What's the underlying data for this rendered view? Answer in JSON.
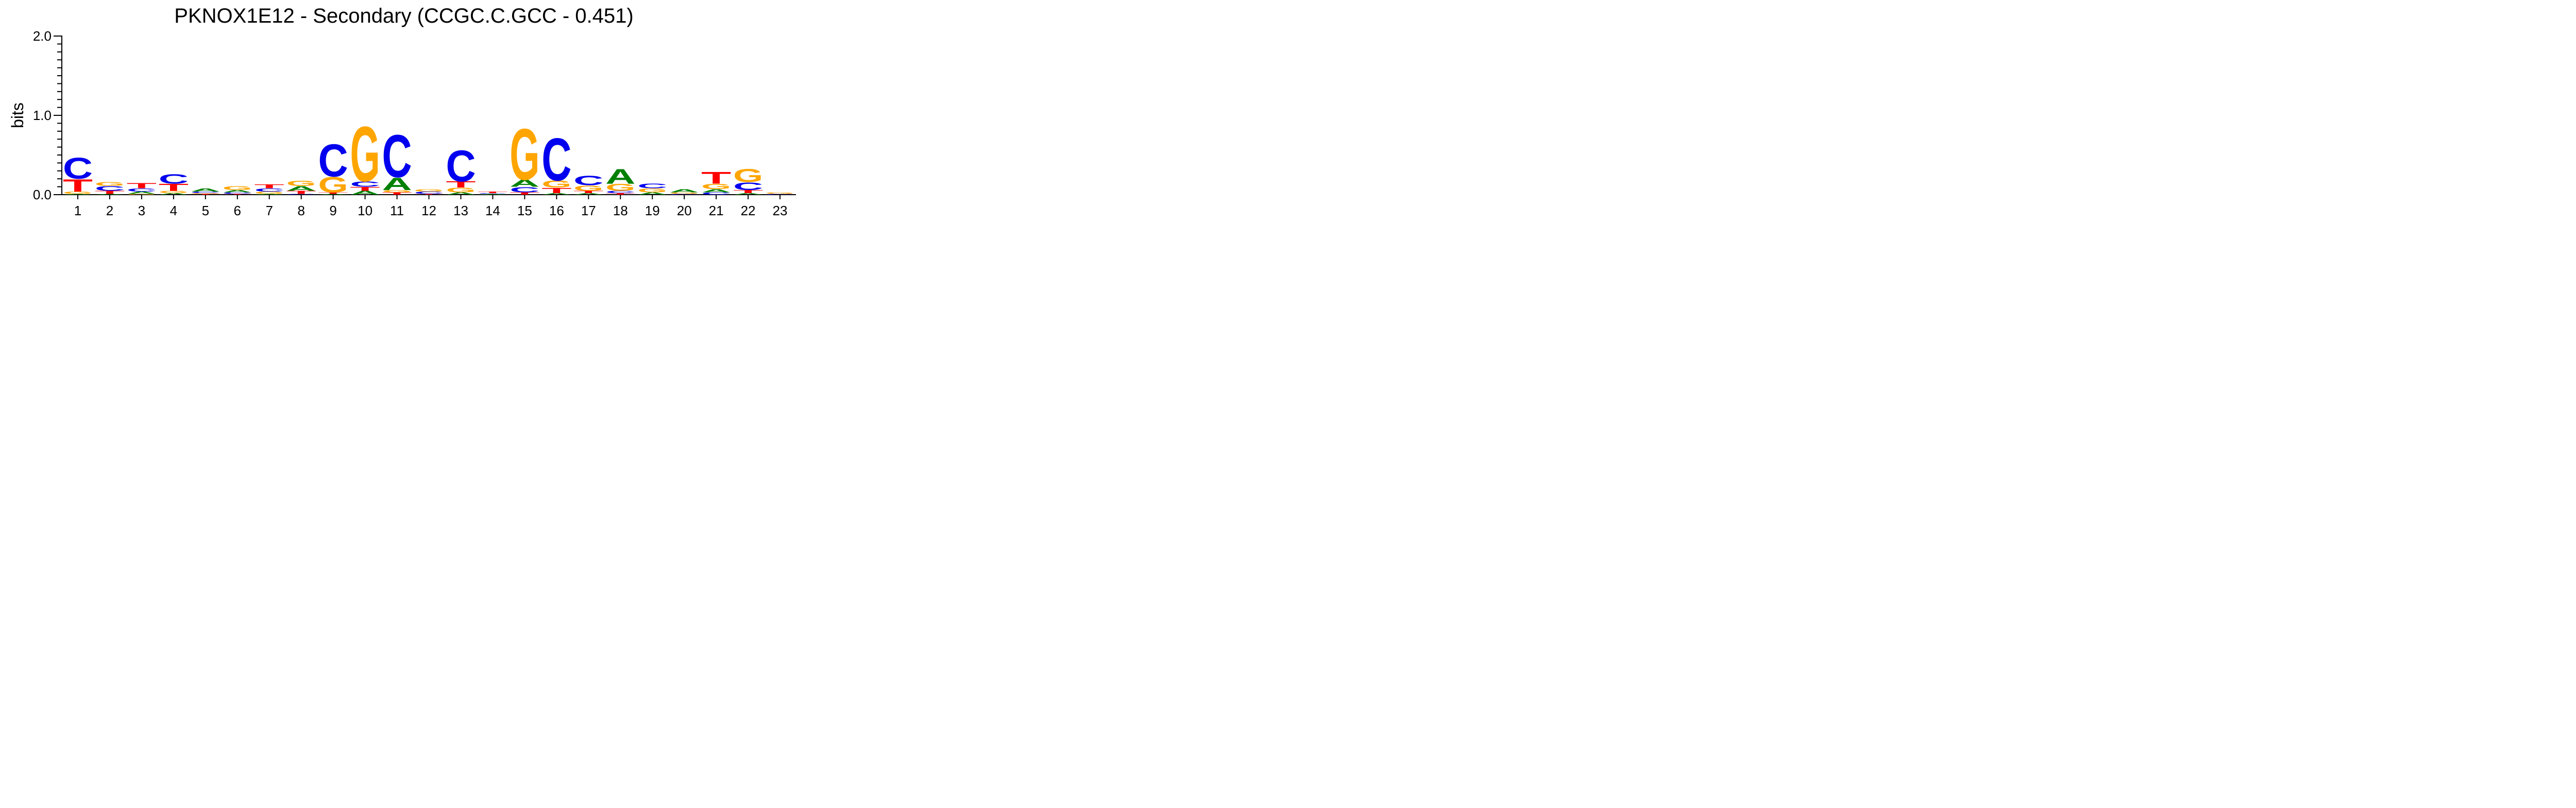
{
  "chart_data": {
    "type": "sequence-logo",
    "title": "PKNOX1E12 - Secondary (CCGC.C.GCC - 0.451)",
    "ylabel": "bits",
    "ylim": [
      0,
      2.0
    ],
    "y_tick_labels": [
      "0.0",
      "1.0",
      "2.0"
    ],
    "y_minor_step": 0.1,
    "positions": [
      "1",
      "2",
      "3",
      "4",
      "5",
      "6",
      "7",
      "8",
      "9",
      "10",
      "11",
      "12",
      "13",
      "14",
      "15",
      "16",
      "17",
      "18",
      "19",
      "20",
      "21",
      "22",
      "23"
    ],
    "colors": {
      "A": "#008000",
      "C": "#0000ee",
      "G": "#ffa500",
      "T": "#ff0000"
    },
    "stacks": [
      [
        [
          "A",
          0.01
        ],
        [
          "G",
          0.03
        ],
        [
          "T",
          0.16
        ],
        [
          "C",
          0.27
        ]
      ],
      [
        [
          "A",
          0.01
        ],
        [
          "T",
          0.04
        ],
        [
          "C",
          0.06
        ],
        [
          "G",
          0.05
        ]
      ],
      [
        [
          "G",
          0.01
        ],
        [
          "A",
          0.03
        ],
        [
          "C",
          0.04
        ],
        [
          "T",
          0.07
        ]
      ],
      [
        [
          "A",
          0.02
        ],
        [
          "G",
          0.03
        ],
        [
          "T",
          0.09
        ],
        [
          "C",
          0.12
        ]
      ],
      [
        [
          "T",
          0.01
        ],
        [
          "G",
          0.01
        ],
        [
          "C",
          0.02
        ],
        [
          "A",
          0.04
        ]
      ],
      [
        [
          "T",
          0.01
        ],
        [
          "C",
          0.02
        ],
        [
          "A",
          0.03
        ],
        [
          "G",
          0.05
        ]
      ],
      [
        [
          "A",
          0.01
        ],
        [
          "G",
          0.03
        ],
        [
          "C",
          0.04
        ],
        [
          "T",
          0.05
        ]
      ],
      [
        [
          "C",
          0.01
        ],
        [
          "T",
          0.04
        ],
        [
          "A",
          0.06
        ],
        [
          "G",
          0.07
        ]
      ],
      [
        [
          "A",
          0.01
        ],
        [
          "T",
          0.02
        ],
        [
          "G",
          0.2
        ],
        [
          "C",
          0.42
        ]
      ],
      [
        [
          "A",
          0.05
        ],
        [
          "T",
          0.05
        ],
        [
          "C",
          0.07
        ],
        [
          "G",
          0.71
        ]
      ],
      [
        [
          "T",
          0.03
        ],
        [
          "G",
          0.03
        ],
        [
          "A",
          0.16
        ],
        [
          "C",
          0.55
        ]
      ],
      [
        [
          "T",
          0.01
        ],
        [
          "C",
          0.03
        ],
        [
          "G",
          0.03
        ]
      ],
      [
        [
          "A",
          0.03
        ],
        [
          "G",
          0.06
        ],
        [
          "T",
          0.08
        ],
        [
          "C",
          0.4
        ]
      ],
      [
        [
          "A",
          0.01
        ],
        [
          "C",
          0.01
        ],
        [
          "T",
          0.02
        ]
      ],
      [
        [
          "T",
          0.03
        ],
        [
          "C",
          0.07
        ],
        [
          "A",
          0.09
        ],
        [
          "G",
          0.66
        ]
      ],
      [
        [
          "A",
          0.02
        ],
        [
          "T",
          0.07
        ],
        [
          "G",
          0.09
        ],
        [
          "C",
          0.55
        ]
      ],
      [
        [
          "A",
          0.02
        ],
        [
          "T",
          0.03
        ],
        [
          "G",
          0.07
        ],
        [
          "C",
          0.12
        ]
      ],
      [
        [
          "T",
          0.02
        ],
        [
          "C",
          0.03
        ],
        [
          "G",
          0.09
        ],
        [
          "A",
          0.19
        ]
      ],
      [
        [
          "A",
          0.03
        ],
        [
          "G",
          0.05
        ],
        [
          "C",
          0.06
        ]
      ],
      [
        [
          "C",
          0.01
        ],
        [
          "G",
          0.02
        ],
        [
          "A",
          0.04
        ]
      ],
      [
        [
          "C",
          0.03
        ],
        [
          "A",
          0.04
        ],
        [
          "G",
          0.07
        ],
        [
          "T",
          0.15
        ]
      ],
      [
        [
          "A",
          0.02
        ],
        [
          "T",
          0.04
        ],
        [
          "C",
          0.1
        ],
        [
          "G",
          0.17
        ]
      ],
      [
        [
          "C",
          0.01
        ],
        [
          "G",
          0.02
        ]
      ]
    ]
  }
}
